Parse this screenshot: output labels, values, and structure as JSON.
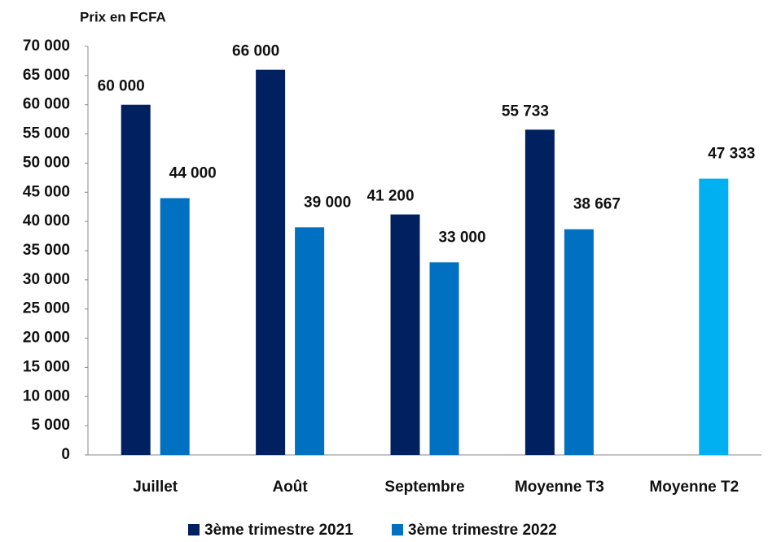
{
  "chart_data": {
    "type": "bar",
    "y_label": "Prix en FCFA",
    "categories": [
      "Juillet",
      "Août",
      "Septembre",
      "Moyenne T3",
      "Moyenne  T2"
    ],
    "series": [
      {
        "name": "3ème trimestre 2021",
        "color": "#002060",
        "values": [
          60000,
          66000,
          41200,
          55733,
          null
        ],
        "value_labels": [
          "60 000",
          "66 000",
          "41 200",
          "55 733",
          null
        ]
      },
      {
        "name": "3ème trimestre 2022",
        "color": "#0070c0",
        "colors": [
          "#0070c0",
          "#0070c0",
          "#0070c0",
          "#0070c0",
          "#00b0f0"
        ],
        "values": [
          44000,
          39000,
          33000,
          38667,
          47333
        ],
        "value_labels": [
          "44 000",
          "39 000",
          "33 000",
          "38 667",
          "47 333"
        ]
      }
    ],
    "ylim": [
      0,
      70000
    ],
    "yticks": [
      0,
      {
        "value": 5000,
        "label": "5 000"
      },
      {
        "value": 10000,
        "label": "10 000"
      },
      {
        "value": 15000,
        "label": "15 000"
      },
      {
        "value": 20000,
        "label": "20 000"
      },
      {
        "value": 25000,
        "label": "25 000"
      },
      {
        "value": 30000,
        "label": "30 000"
      },
      {
        "value": 35000,
        "label": "35 000"
      },
      {
        "value": 40000,
        "label": "40 000"
      },
      {
        "value": 45000,
        "label": "45 000"
      },
      {
        "value": 50000,
        "label": "50 000"
      },
      {
        "value": 55000,
        "label": "55 000"
      },
      {
        "value": 60000,
        "label": "60 000"
      },
      {
        "value": 65000,
        "label": "65 000"
      },
      {
        "value": 70000,
        "label": "70 000"
      }
    ],
    "grid": false,
    "legend": "bottom"
  }
}
